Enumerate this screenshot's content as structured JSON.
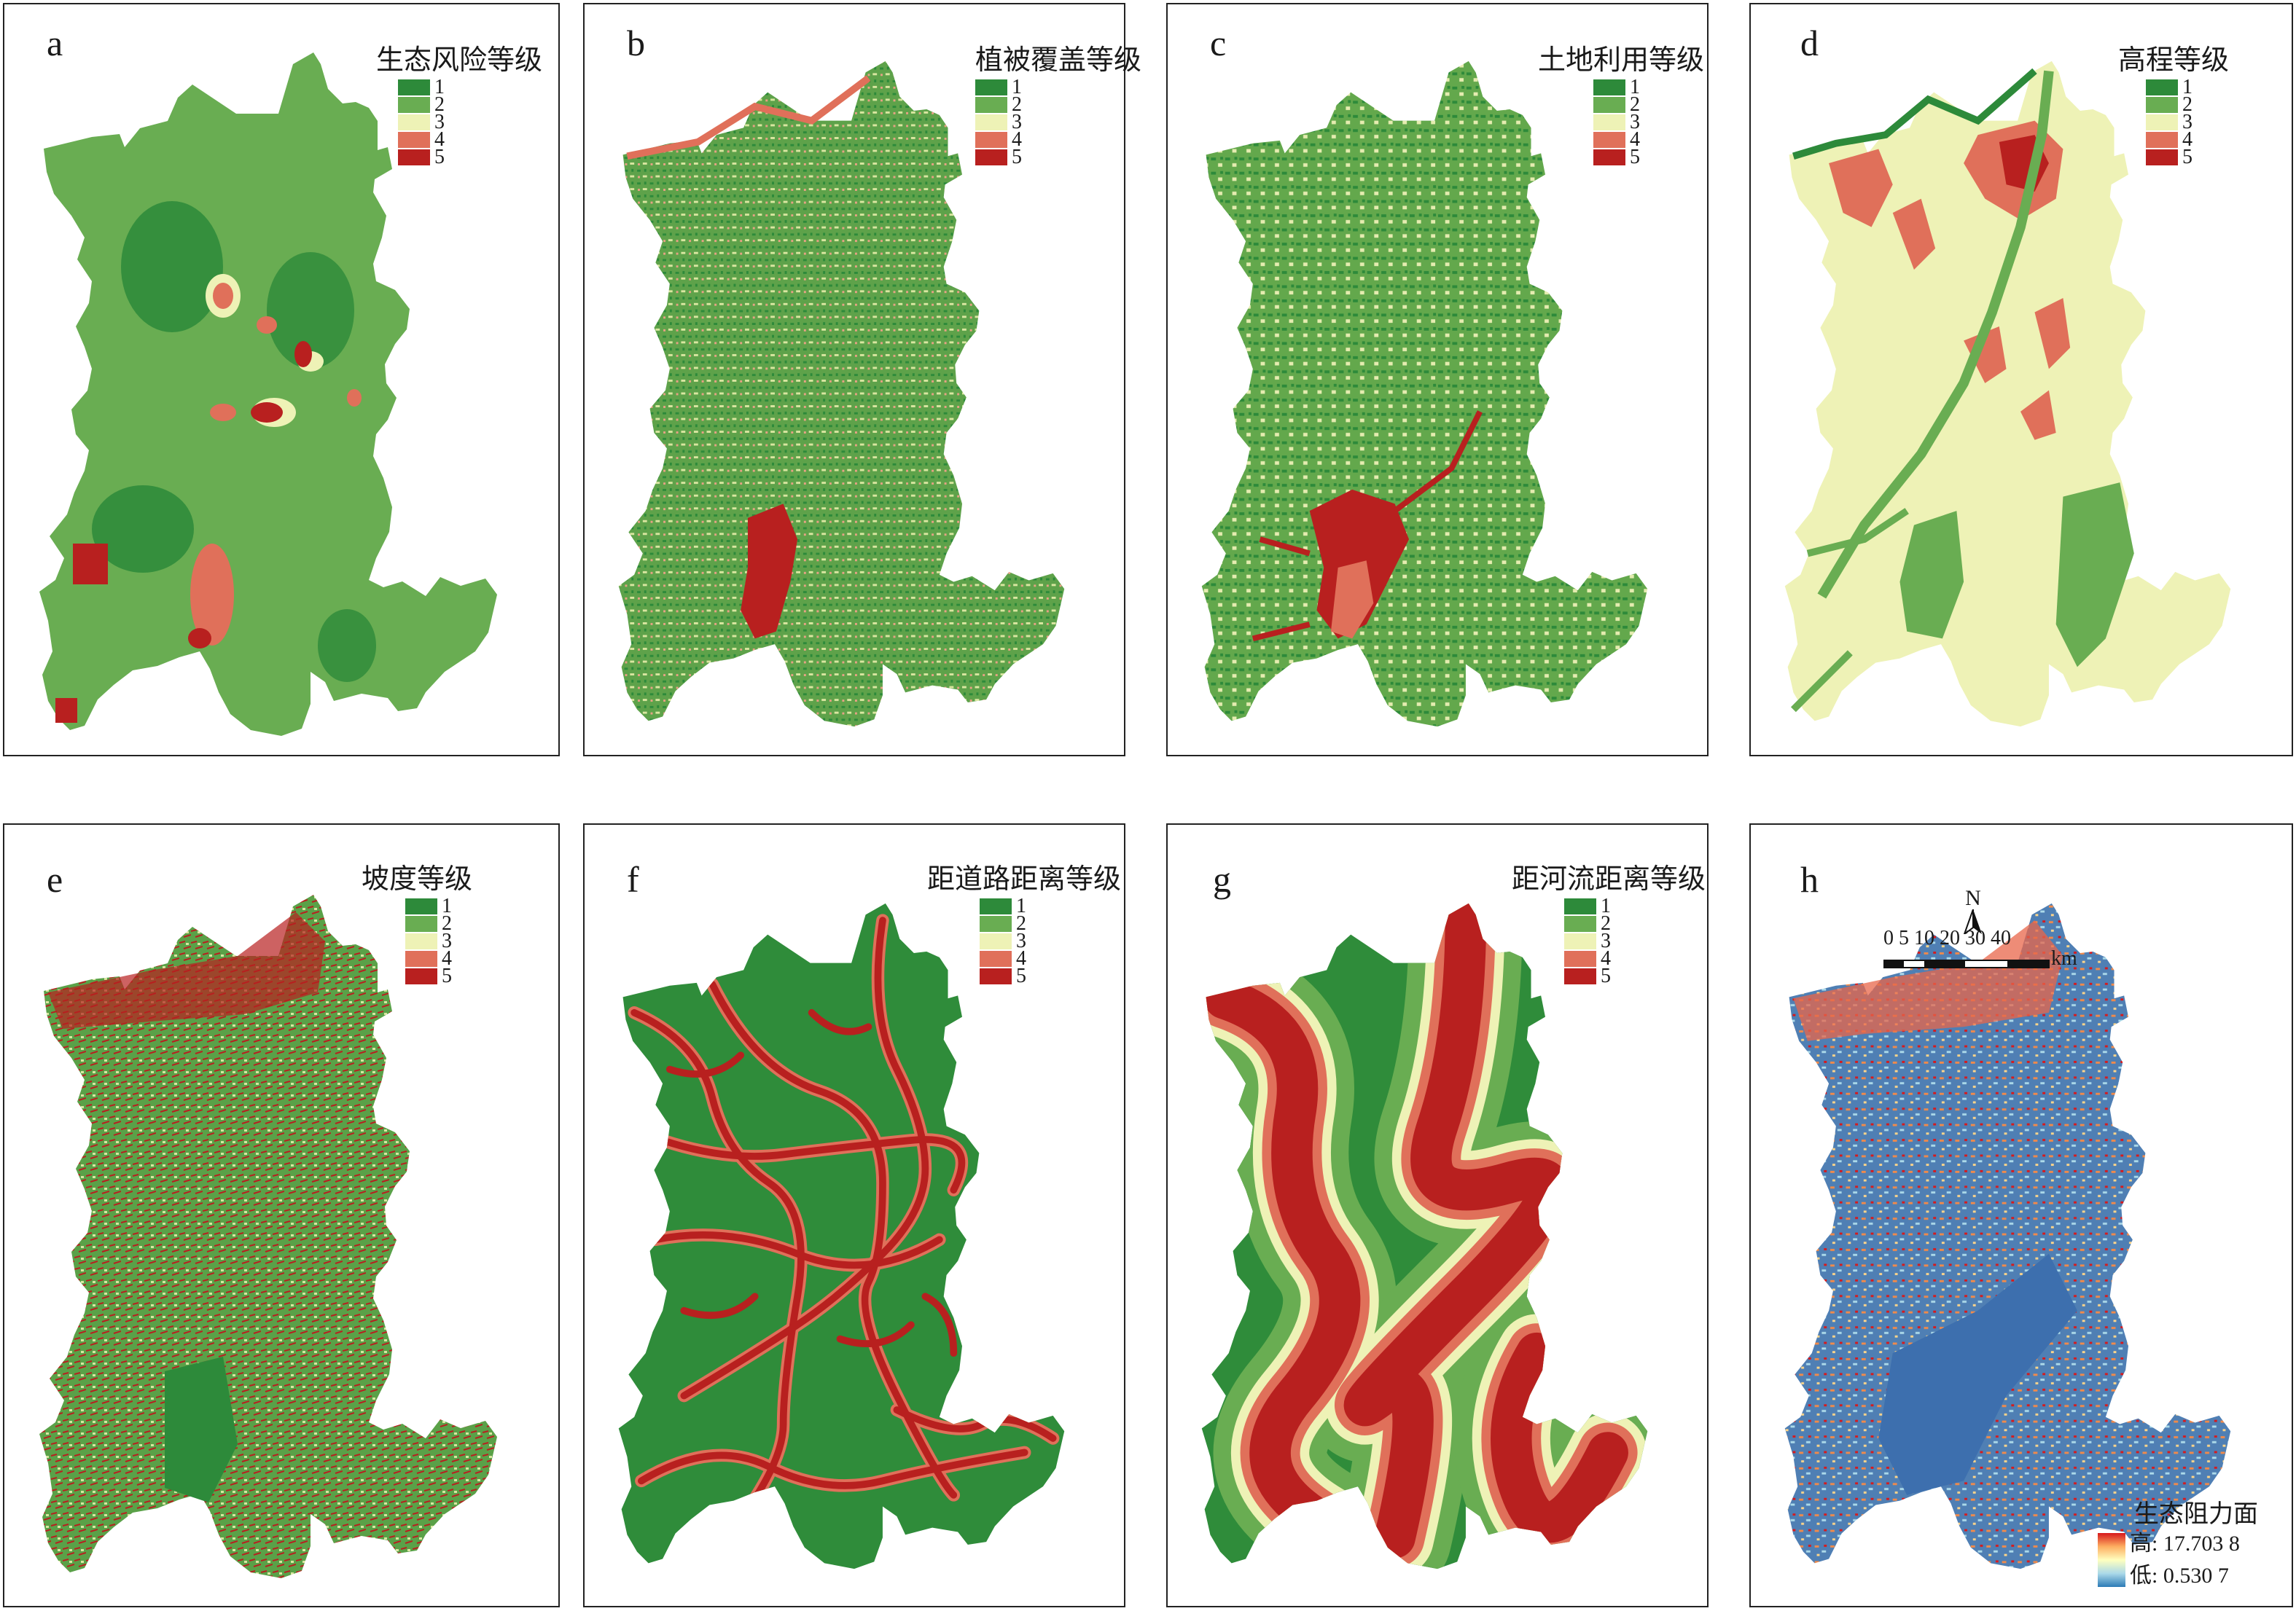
{
  "panels": [
    {
      "letter": "a",
      "title": "生态风险等级",
      "classes": [
        "1",
        "2",
        "3",
        "4",
        "5"
      ],
      "base_color": "#69ad52",
      "palette": [
        "#2d8a3a",
        "#69ad52",
        "#eef2b6",
        "#e0705a",
        "#b8201f"
      ]
    },
    {
      "letter": "b",
      "title": "植被覆盖等级",
      "classes": [
        "1",
        "2",
        "3",
        "4",
        "5"
      ],
      "base_color": "#5ea24a",
      "palette": [
        "#2d8a3a",
        "#69ad52",
        "#eef2b6",
        "#e0705a",
        "#b8201f"
      ]
    },
    {
      "letter": "c",
      "title": "土地利用等级",
      "classes": [
        "1",
        "2",
        "3",
        "4",
        "5"
      ],
      "base_color": "#63a84c",
      "palette": [
        "#2d8a3a",
        "#69ad52",
        "#eef2b6",
        "#e0705a",
        "#b8201f"
      ]
    },
    {
      "letter": "d",
      "title": "高程等级",
      "classes": [
        "1",
        "2",
        "3",
        "4",
        "5"
      ],
      "base_color": "#eef2b6",
      "palette": [
        "#2d8a3a",
        "#69ad52",
        "#eef2b6",
        "#e0705a",
        "#b8201f"
      ]
    },
    {
      "letter": "e",
      "title": "坡度等级",
      "classes": [
        "1",
        "2",
        "3",
        "4",
        "5"
      ],
      "base_color": "#5aa148",
      "palette": [
        "#2d8a3a",
        "#69ad52",
        "#eef2b6",
        "#e0705a",
        "#b8201f"
      ]
    },
    {
      "letter": "f",
      "title": "距道路距离等级",
      "classes": [
        "1",
        "2",
        "3",
        "4",
        "5"
      ],
      "base_color": "#2f8c3a",
      "palette": [
        "#2d8a3a",
        "#69ad52",
        "#eef2b6",
        "#e0705a",
        "#b8201f"
      ]
    },
    {
      "letter": "g",
      "title": "距河流距离等级",
      "classes": [
        "1",
        "2",
        "3",
        "4",
        "5"
      ],
      "base_color": "#2f8c3a",
      "palette": [
        "#2d8a3a",
        "#69ad52",
        "#eef2b6",
        "#e0705a",
        "#b8201f"
      ]
    },
    {
      "letter": "h",
      "title": "",
      "classes": [],
      "base_color": "#4f7fb4",
      "palette": [
        "#d7191c",
        "#fdae61",
        "#ffffbf",
        "#abd9e9",
        "#2c7bb6"
      ]
    }
  ],
  "resistance_legend": {
    "title": "生态阻力面",
    "high": "高: 17.703 8",
    "low": "低: 0.530 7"
  },
  "scale": {
    "north_label": "N",
    "ticks": "0 5 10 20 30 40",
    "unit": "km"
  }
}
